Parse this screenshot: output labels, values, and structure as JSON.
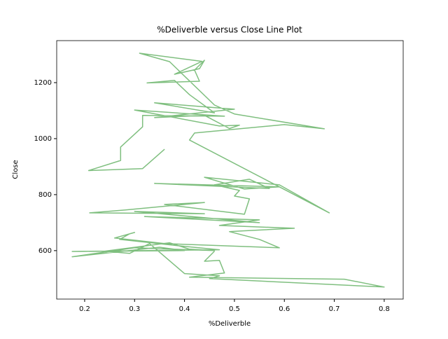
{
  "chart_data": {
    "type": "line",
    "title": "%Deliverble versus Close Line Plot",
    "x_label": "%Deliverble",
    "y_label": "Close",
    "x": [
      0.36,
      0.316,
      0.208,
      0.272,
      0.272,
      0.316,
      0.316,
      0.48,
      0.3,
      0.47,
      0.51,
      0.49,
      0.44,
      0.34,
      0.5,
      0.34,
      0.46,
      0.41,
      0.38,
      0.325,
      0.43,
      0.42,
      0.44,
      0.43,
      0.38,
      0.435,
      0.31,
      0.37,
      0.46,
      0.5,
      0.68,
      0.6,
      0.42,
      0.41,
      0.69,
      0.59,
      0.44,
      0.52,
      0.59,
      0.34,
      0.57,
      0.53,
      0.46,
      0.51,
      0.5,
      0.53,
      0.52,
      0.36,
      0.44,
      0.28,
      0.21,
      0.44,
      0.3,
      0.55,
      0.32,
      0.55,
      0.47,
      0.62,
      0.51,
      0.49,
      0.55,
      0.59,
      0.36,
      0.26,
      0.3,
      0.29,
      0.27,
      0.4,
      0.47,
      0.175,
      0.4,
      0.35,
      0.175,
      0.3,
      0.46,
      0.41,
      0.37,
      0.24,
      0.29,
      0.33,
      0.4,
      0.47,
      0.45,
      0.8,
      0.72,
      0.41,
      0.48,
      0.47,
      0.44,
      0.46
    ],
    "values": [
      962,
      893,
      886,
      922,
      970,
      1042,
      1083,
      1080,
      1102,
      1045,
      1048,
      1036,
      1083,
      1075,
      1105,
      1128,
      1092,
      1157,
      1208,
      1199,
      1205,
      1245,
      1280,
      1250,
      1230,
      1276,
      1305,
      1275,
      1120,
      1088,
      1035,
      1050,
      1020,
      995,
      735,
      835,
      862,
      820,
      828,
      840,
      822,
      855,
      835,
      815,
      795,
      785,
      730,
      765,
      772,
      745,
      735,
      732,
      740,
      700,
      722,
      710,
      690,
      680,
      670,
      668,
      640,
      610,
      625,
      645,
      665,
      660,
      640,
      615,
      603,
      597,
      600,
      612,
      578,
      610,
      600,
      605,
      628,
      598,
      590,
      625,
      518,
      510,
      500,
      470,
      498,
      505,
      520,
      565,
      562,
      598
    ],
    "color": "#7fbf7f",
    "xlim": [
      0.144,
      0.838
    ],
    "ylim": [
      427,
      1350
    ],
    "xticks": [
      0.2,
      0.3,
      0.4,
      0.5,
      0.6,
      0.7,
      0.8
    ],
    "yticks": [
      600,
      800,
      1000,
      1200
    ]
  }
}
